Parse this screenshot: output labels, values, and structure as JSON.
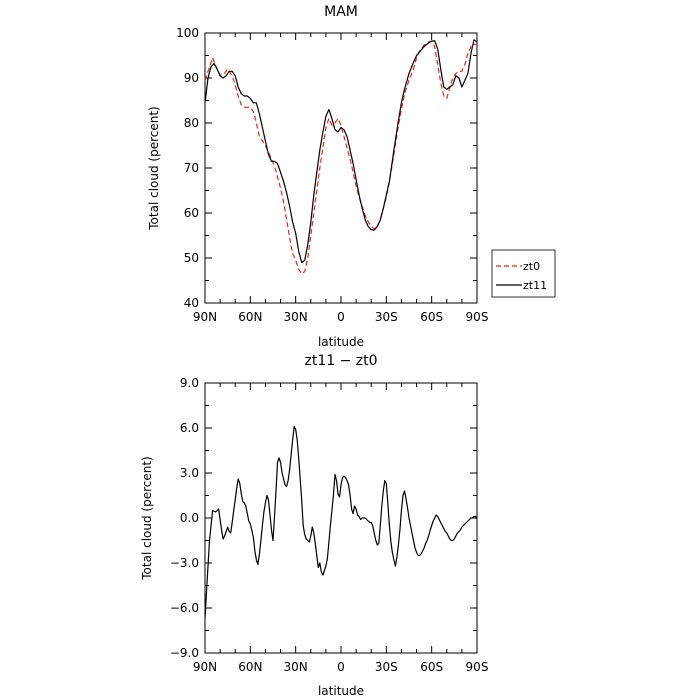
{
  "chart_data": [
    {
      "type": "line",
      "title": "MAM",
      "xlabel": "latitude",
      "ylabel": "Total cloud (percent)",
      "xlim": [
        90,
        -90
      ],
      "ylim": [
        40,
        100
      ],
      "x_ticks": [
        90,
        60,
        30,
        0,
        -30,
        -60,
        -90
      ],
      "x_tick_labels": [
        "90N",
        "60N",
        "30N",
        "0",
        "30S",
        "60S",
        "90S"
      ],
      "y_ticks": [
        40,
        50,
        60,
        70,
        80,
        90,
        100
      ],
      "y_tick_labels": [
        "40",
        "50",
        "60",
        "70",
        "80",
        "90",
        "100"
      ],
      "grid": false,
      "legend_position": "right",
      "legend_entries": [
        "zt0",
        "zt11"
      ],
      "series": [
        {
          "name": "zt0",
          "color": "#e8281e",
          "dash": "dashed",
          "x": [
            90,
            87,
            85,
            82,
            80,
            77,
            75,
            72,
            70,
            68,
            66,
            64,
            62,
            60,
            58,
            56,
            54,
            52,
            50,
            48,
            46,
            44,
            42,
            40,
            38,
            36,
            34,
            32,
            30,
            28,
            26,
            24,
            22,
            20,
            18,
            16,
            14,
            12,
            10,
            8,
            6,
            4,
            2,
            0,
            -2,
            -4,
            -6,
            -8,
            -10,
            -12,
            -14,
            -16,
            -18,
            -20,
            -22,
            -24,
            -26,
            -28,
            -30,
            -32,
            -35,
            -38,
            -40,
            -42,
            -45,
            -48,
            -50,
            -52,
            -55,
            -58,
            -60,
            -62,
            -64,
            -66,
            -68,
            -70,
            -72,
            -74,
            -76,
            -78,
            -80,
            -82,
            -84,
            -86,
            -88,
            -90
          ],
          "y": [
            89.5,
            92.5,
            94.5,
            92,
            90.5,
            91,
            92,
            90.5,
            88.5,
            86,
            84,
            83.5,
            83.5,
            83.5,
            82.5,
            80,
            77,
            76,
            75,
            73.5,
            72,
            70.5,
            68,
            65.5,
            62.5,
            58.5,
            54.5,
            51,
            49.5,
            47.5,
            46.5,
            47,
            50,
            55,
            60,
            65,
            70,
            74.5,
            79,
            81,
            79.5,
            80,
            81,
            79.5,
            77,
            74.5,
            72,
            69,
            66,
            63.5,
            61.5,
            59.5,
            58,
            57,
            56.5,
            57,
            58.5,
            61,
            63.5,
            67,
            73,
            79.5,
            83,
            86.5,
            89.5,
            92,
            94.5,
            96,
            97.3,
            98,
            98.2,
            97,
            93,
            89,
            86,
            85.5,
            88,
            90,
            91,
            91.5,
            91.5,
            93,
            95.5,
            97,
            97.5,
            97.5
          ]
        },
        {
          "name": "zt11",
          "color": "#000000",
          "dash": "solid",
          "x": [
            90,
            88,
            86,
            84,
            82,
            80,
            78,
            76,
            74,
            72,
            70,
            68,
            66,
            64,
            62,
            60,
            58,
            56,
            54,
            52,
            50,
            48,
            46,
            44,
            42,
            40,
            38,
            36,
            34,
            32,
            30,
            28,
            26,
            24,
            22,
            20,
            18,
            16,
            14,
            12,
            10,
            8,
            6,
            4,
            2,
            0,
            -2,
            -4,
            -6,
            -8,
            -10,
            -12,
            -14,
            -16,
            -18,
            -20,
            -22,
            -24,
            -26,
            -28,
            -30,
            -32,
            -35,
            -38,
            -40,
            -42,
            -45,
            -48,
            -50,
            -52,
            -55,
            -58,
            -60,
            -62,
            -64,
            -66,
            -68,
            -70,
            -72,
            -74,
            -76,
            -78,
            -80,
            -82,
            -84,
            -86,
            -88,
            -90
          ],
          "y": [
            84.5,
            90,
            92.5,
            93.2,
            92,
            90.5,
            90,
            90.5,
            91.5,
            91.5,
            90.5,
            88,
            86.5,
            86,
            86,
            85.5,
            84.5,
            84.5,
            82,
            79,
            76,
            73,
            71.5,
            71.5,
            71,
            69,
            67,
            64.5,
            61.5,
            58,
            55.5,
            51.5,
            49,
            49.5,
            53,
            58,
            64,
            69,
            74,
            78,
            81.5,
            83,
            81,
            78.5,
            78,
            79,
            78.5,
            77,
            74,
            71,
            67.5,
            64,
            61,
            58.5,
            57,
            56.3,
            56.2,
            57,
            58.5,
            61,
            64,
            67,
            74,
            80.5,
            84.5,
            87.5,
            91,
            93.5,
            95,
            95.8,
            97,
            97.8,
            98.2,
            98.3,
            96.5,
            92,
            88,
            87.5,
            88,
            88.5,
            90.5,
            90,
            88,
            89.5,
            91,
            95.5,
            98.5,
            98
          ]
        }
      ]
    },
    {
      "type": "line",
      "title": "zt11 − zt0",
      "xlabel": "latitude",
      "ylabel": "Total cloud (percent)",
      "xlim": [
        90,
        -90
      ],
      "ylim": [
        -9,
        9
      ],
      "x_ticks": [
        90,
        60,
        30,
        0,
        -30,
        -60,
        -90
      ],
      "x_tick_labels": [
        "90N",
        "60N",
        "30N",
        "0",
        "30S",
        "60S",
        "90S"
      ],
      "y_ticks": [
        -9,
        -6,
        -3,
        0,
        3,
        6,
        9
      ],
      "y_tick_labels": [
        "−9.0",
        "−6.0",
        "−3.0",
        "0.0",
        "3.0",
        "6.0",
        "9.0"
      ],
      "grid": false,
      "series": [
        {
          "color": "#000000",
          "dash": "solid",
          "x": [
            90,
            88.5,
            87,
            85,
            83,
            81,
            79,
            78,
            77,
            76,
            75,
            74,
            73,
            72,
            71,
            70,
            69,
            68,
            67,
            66,
            65,
            64,
            63,
            62,
            61,
            60,
            59,
            58,
            57,
            56,
            55,
            54,
            53,
            52,
            51,
            50,
            49,
            48,
            47,
            46,
            45,
            44,
            43,
            42,
            41,
            40,
            39,
            38,
            37,
            36,
            35,
            34,
            33,
            32,
            31,
            30,
            29,
            28,
            27,
            26,
            25,
            24,
            23,
            22,
            21,
            20,
            19,
            18,
            17,
            16,
            15,
            14,
            13,
            12,
            11,
            10,
            9,
            8,
            7,
            6,
            5,
            4,
            3,
            2,
            1,
            0,
            -1,
            -2,
            -3,
            -4,
            -5,
            -6,
            -7,
            -8,
            -9,
            -10,
            -11,
            -12,
            -13,
            -14,
            -15,
            -16,
            -17,
            -18,
            -19,
            -20,
            -21,
            -22,
            -23,
            -24,
            -25,
            -26,
            -27,
            -28,
            -29,
            -30,
            -31,
            -32,
            -33,
            -34,
            -35,
            -36,
            -37,
            -38,
            -39,
            -40,
            -41,
            -42,
            -43,
            -44,
            -45,
            -46,
            -47,
            -48,
            -49,
            -50,
            -51,
            -52,
            -53,
            -54,
            -55,
            -56,
            -57,
            -58,
            -59,
            -60,
            -61,
            -62,
            -63,
            -64,
            -65,
            -66,
            -67,
            -68,
            -69,
            -70,
            -71,
            -72,
            -73,
            -74,
            -75,
            -76,
            -77,
            -78,
            -79,
            -80,
            -81,
            -82,
            -83,
            -84,
            -85,
            -86,
            -87,
            -88,
            -89,
            -90
          ],
          "y": [
            -6.7,
            -4.0,
            -1.5,
            0.5,
            0.4,
            0.6,
            -0.8,
            -1.4,
            -1.2,
            -0.9,
            -0.6,
            -0.9,
            -1.0,
            -0.3,
            0.5,
            1.2,
            2.0,
            2.6,
            2.3,
            1.6,
            1.1,
            1.0,
            0.8,
            0.3,
            -0.2,
            -0.4,
            -0.8,
            -1.3,
            -2.2,
            -2.8,
            -3.1,
            -2.4,
            -1.5,
            -0.5,
            0.4,
            1.0,
            1.5,
            1.2,
            0.2,
            -0.8,
            -1.5,
            0.1,
            1.8,
            3.7,
            4.0,
            3.7,
            3.0,
            2.6,
            2.2,
            2.1,
            2.5,
            3.2,
            4.2,
            5.2,
            6.1,
            5.9,
            5.2,
            4.0,
            2.6,
            1.2,
            -0.5,
            -1.1,
            -1.4,
            -1.5,
            -1.6,
            -1.2,
            -0.6,
            -1.0,
            -1.7,
            -2.5,
            -3.3,
            -3.0,
            -3.6,
            -3.8,
            -3.5,
            -3.2,
            -2.7,
            -1.6,
            -0.5,
            0.5,
            1.5,
            2.9,
            2.5,
            1.6,
            1.4,
            2.2,
            2.7,
            2.8,
            2.7,
            2.5,
            2.2,
            1.5,
            0.6,
            0.3,
            0.8,
            0.6,
            0.2,
            0.1,
            -0.1,
            0.0,
            0.0,
            0.0,
            -0.1,
            -0.2,
            -0.3,
            -0.3,
            -0.5,
            -1.0,
            -1.5,
            -1.8,
            -1.7,
            -0.5,
            0.8,
            1.8,
            2.5,
            2.3,
            1.0,
            -0.5,
            -1.6,
            -2.3,
            -2.8,
            -3.2,
            -2.6,
            -1.8,
            -0.8,
            0.5,
            1.5,
            1.8,
            1.3,
            0.7,
            0.0,
            -0.5,
            -1.0,
            -1.5,
            -2.0,
            -2.3,
            -2.5,
            -2.5,
            -2.4,
            -2.2,
            -2.0,
            -1.7,
            -1.5,
            -1.2,
            -0.8,
            -0.5,
            -0.2,
            0.0,
            0.2,
            0.1,
            -0.1,
            -0.3,
            -0.5,
            -0.7,
            -0.9,
            -1.0,
            -1.2,
            -1.4,
            -1.5,
            -1.5,
            -1.4,
            -1.2,
            -1.0,
            -0.9,
            -0.8,
            -0.6,
            -0.5,
            -0.4,
            -0.3,
            -0.2,
            -0.1,
            0.0,
            0.0,
            0.1,
            0.1,
            0.0
          ]
        }
      ]
    }
  ]
}
